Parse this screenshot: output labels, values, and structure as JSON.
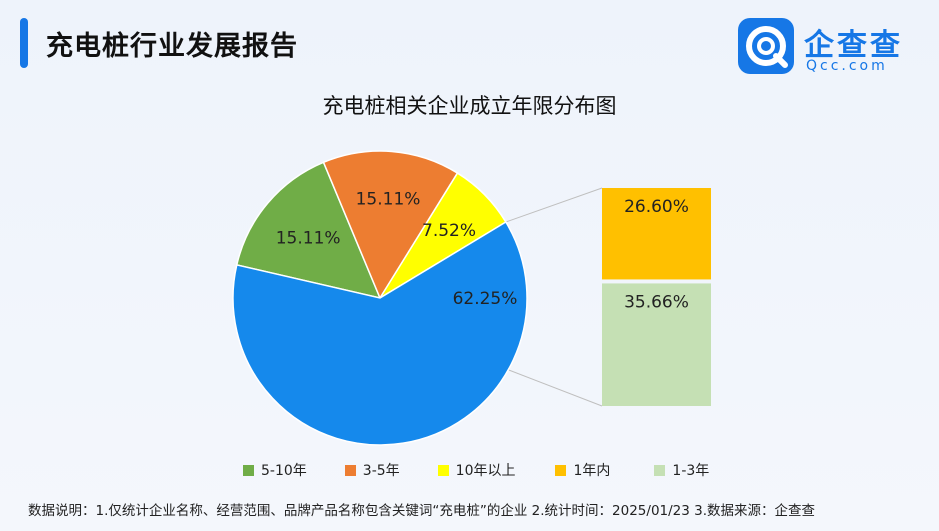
{
  "header": {
    "title": "充电桩行业发展报告",
    "logo_cn": "企查查",
    "logo_en": "Qcc.com",
    "logo_icon": "qcc-logo-icon"
  },
  "chart_data": {
    "type": "pie",
    "title": "充电桩相关企业成立年限分布图",
    "slices": [
      {
        "name": "5-10年",
        "value": 15.11,
        "label": "15.11%",
        "color": "#70ad47"
      },
      {
        "name": "3-5年",
        "value": 15.11,
        "label": "15.11%",
        "color": "#ed7d31"
      },
      {
        "name": "10年以上",
        "value": 7.52,
        "label": "7.52%",
        "color": "#ffff00"
      },
      {
        "name": "1-3年 + 1年内",
        "value": 62.25,
        "label": "62.25%",
        "color": "#1589ec"
      }
    ],
    "breakdown": {
      "of": "62.25%",
      "items": [
        {
          "name": "1年内",
          "value": 26.6,
          "label": "26.60%",
          "color": "#ffc000"
        },
        {
          "name": "1-3年",
          "value": 35.66,
          "label": "35.66%",
          "color": "#c5e0b4"
        }
      ]
    },
    "legend": [
      {
        "name": "5-10年",
        "color": "#70ad47"
      },
      {
        "name": "3-5年",
        "color": "#ed7d31"
      },
      {
        "name": "10年以上",
        "color": "#ffff00"
      },
      {
        "name": "1年内",
        "color": "#ffc000"
      },
      {
        "name": "1-3年",
        "color": "#c5e0b4"
      }
    ],
    "legend_position": "bottom"
  },
  "footnote": "数据说明：1.仅统计企业名称、经营范围、品牌产品名称包含关键词“充电桩”的企业   2.统计时间：2025/01/23    3.数据来源：企查查"
}
